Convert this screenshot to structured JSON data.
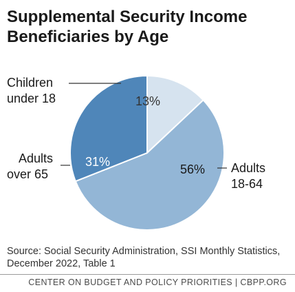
{
  "chart_data": {
    "type": "pie",
    "title_lines": [
      "Supplemental Security Income",
      "Beneficiaries by Age"
    ],
    "slices": [
      {
        "label_lines": [
          "Children",
          "under 18"
        ],
        "value": 13,
        "value_label": "13%",
        "color": "#d6e3ef"
      },
      {
        "label_lines": [
          "Adults",
          "18-64"
        ],
        "value": 56,
        "value_label": "56%",
        "color": "#93b6d6"
      },
      {
        "label_lines": [
          "Adults",
          "over 65"
        ],
        "value": 31,
        "value_label": "31%",
        "color": "#4f86b9"
      }
    ]
  },
  "source_lines": [
    "Source: Social Security Administration, SSI Monthly Statistics,",
    "December 2022, Table 1"
  ],
  "footer": "CENTER ON BUDGET AND POLICY PRIORITIES | CBPP.ORG"
}
